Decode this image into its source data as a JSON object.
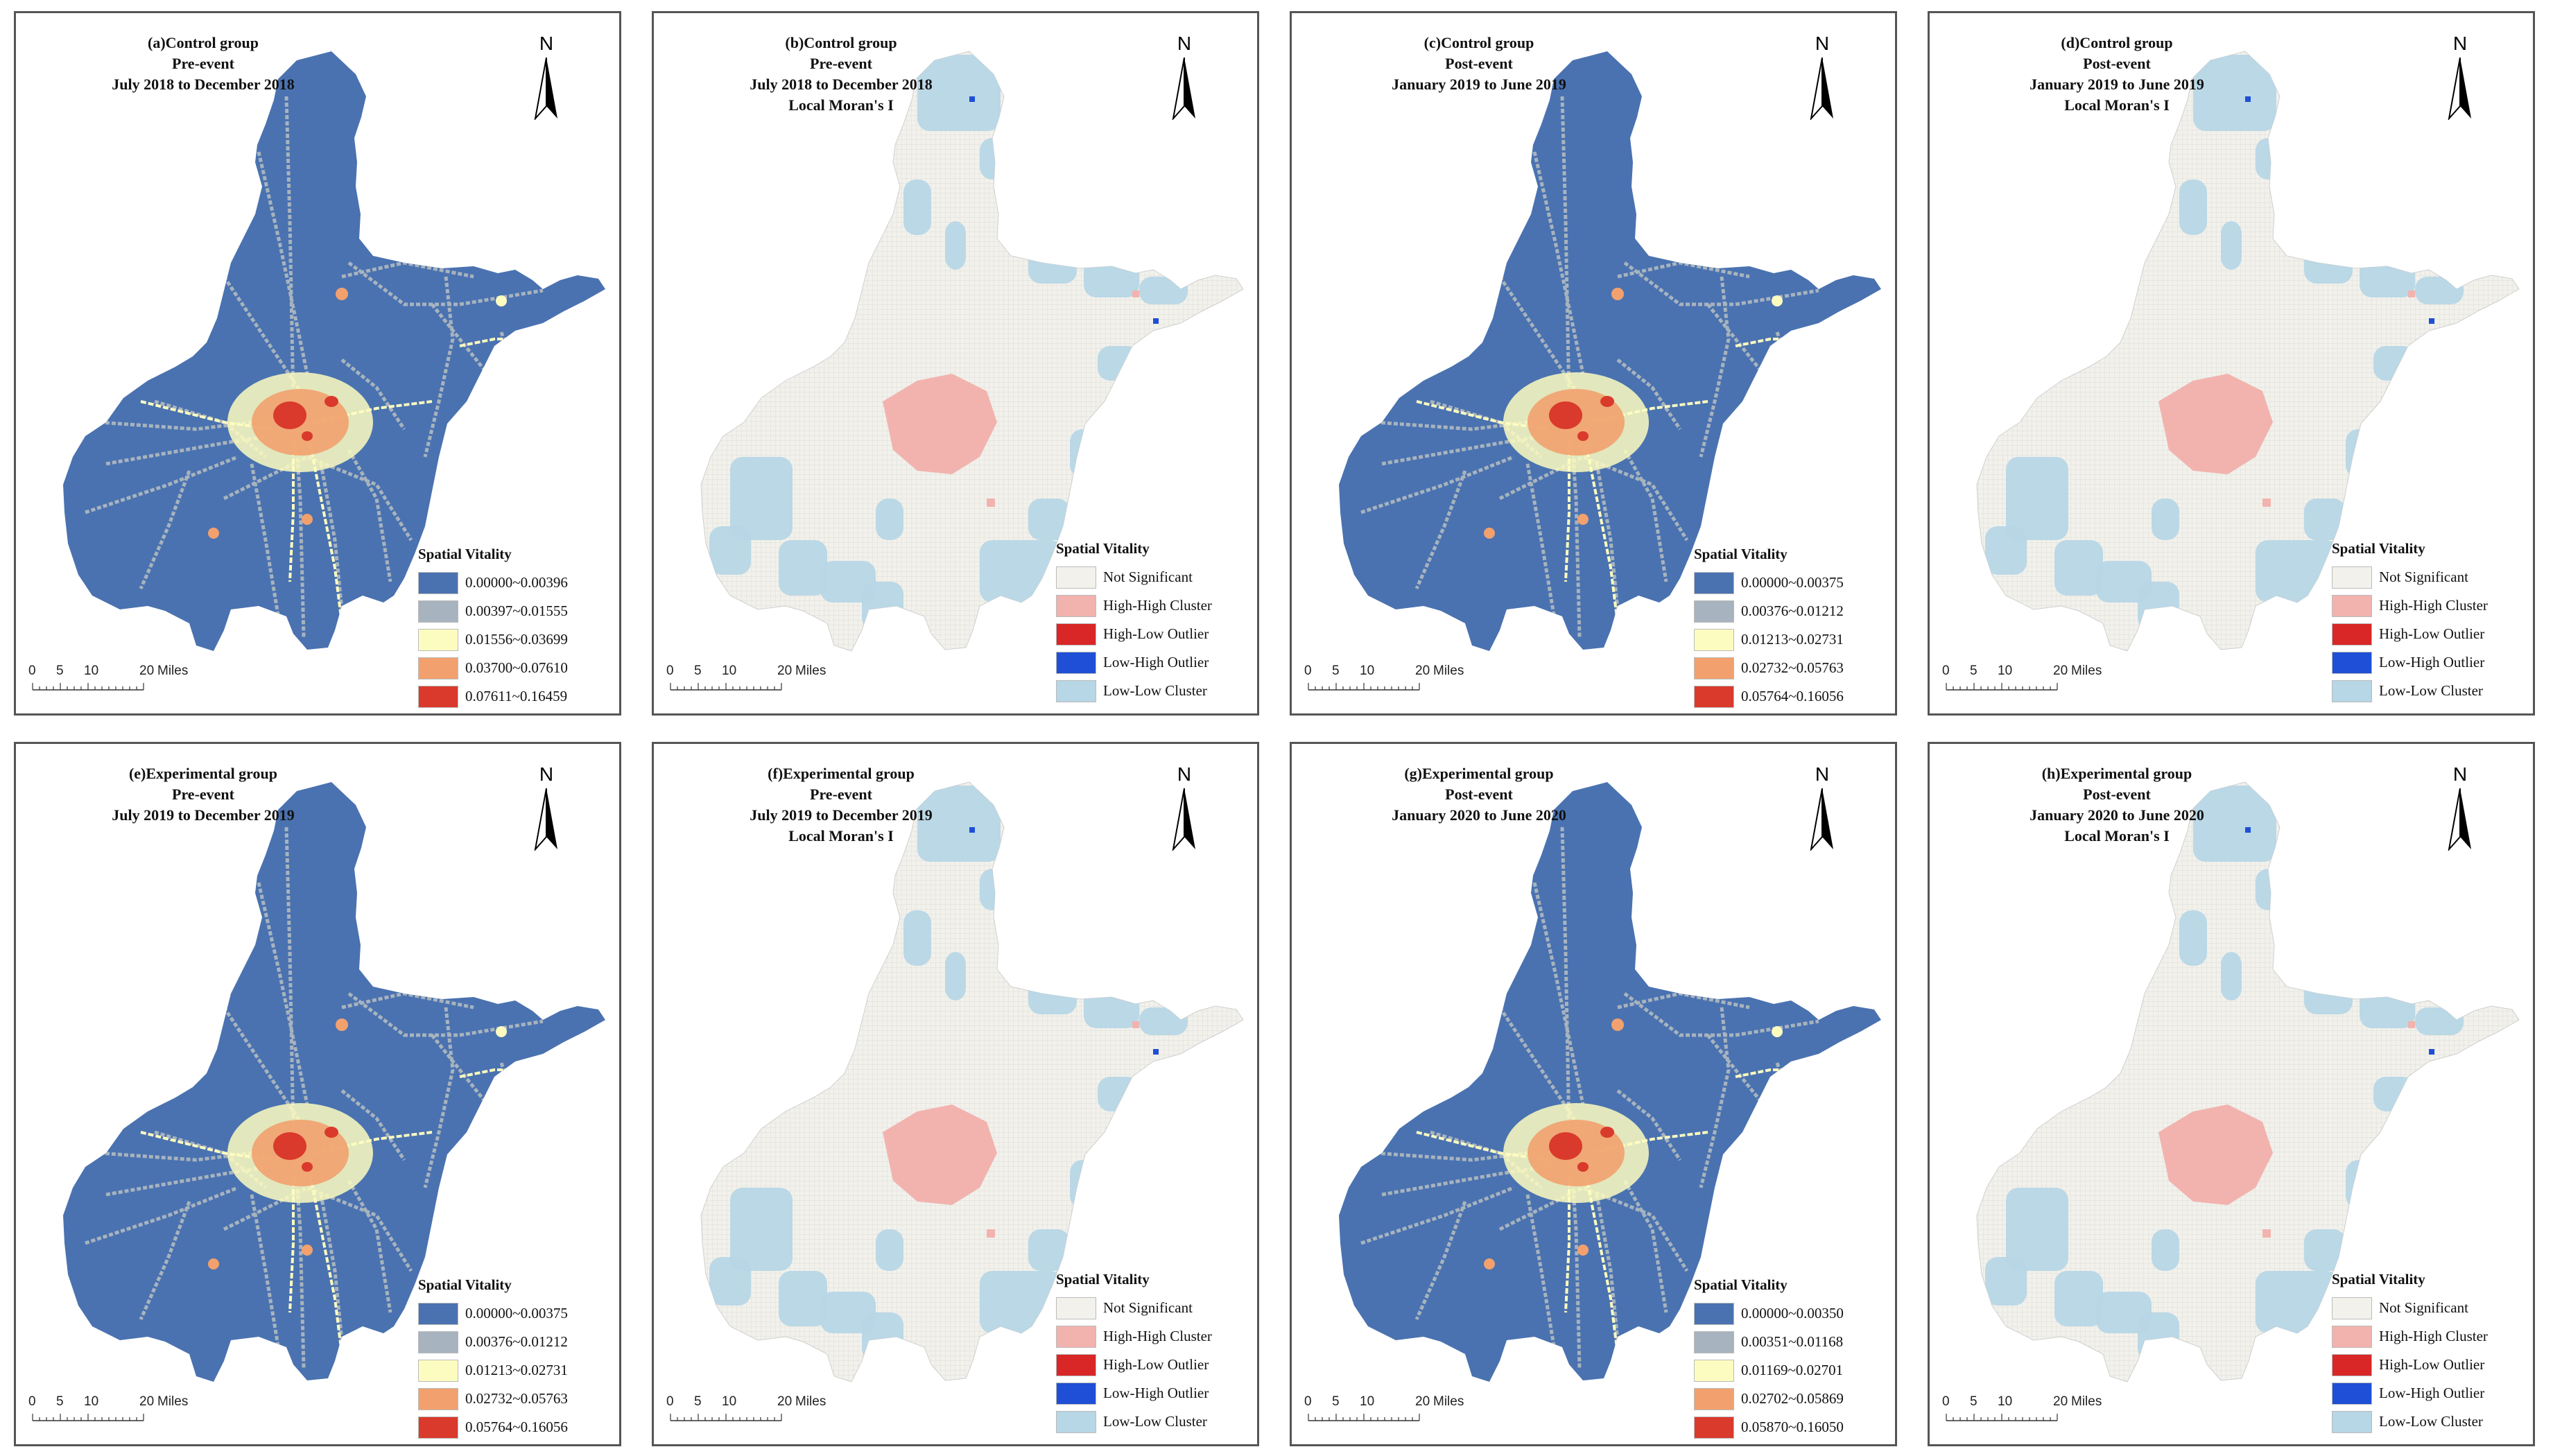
{
  "panels": [
    {
      "id": "a",
      "kind": "vitality",
      "title": [
        "(a)Control group",
        "Pre-event",
        "July 2018 to December 2018"
      ],
      "legend_title": "Spatial Vitality",
      "legend_items": [
        {
          "label": "0.00000~0.00396",
          "color": "#4a72b0"
        },
        {
          "label": "0.00397~0.01555",
          "color": "#a7b3be"
        },
        {
          "label": "0.01556~0.03699",
          "color": "#fdfcc0"
        },
        {
          "label": "0.03700~0.07610",
          "color": "#f2a16e"
        },
        {
          "label": "0.07611~0.16459",
          "color": "#d93a2c"
        }
      ],
      "north": "N",
      "scale": {
        "labels": [
          "0",
          "5",
          "10",
          "20"
        ],
        "unit": "Miles"
      }
    },
    {
      "id": "b",
      "kind": "moran",
      "title": [
        "(b)Control group",
        "Pre-event",
        "July 2018 to December 2018",
        "Local Moran's I"
      ],
      "legend_title": "Spatial Vitality",
      "legend_items": [
        {
          "label": "Not Significant",
          "color": "#f2f1ec"
        },
        {
          "label": "High-High Cluster",
          "color": "#f2b3ae"
        },
        {
          "label": "High-Low Outlier",
          "color": "#d92626"
        },
        {
          "label": "Low-High Outlier",
          "color": "#1f4fd6"
        },
        {
          "label": "Low-Low Cluster",
          "color": "#b7d6e6"
        }
      ],
      "north": "N",
      "scale": {
        "labels": [
          "0",
          "5",
          "10",
          "20"
        ],
        "unit": "Miles"
      }
    },
    {
      "id": "c",
      "kind": "vitality",
      "title": [
        "(c)Control group",
        "Post-event",
        "January 2019 to June 2019"
      ],
      "legend_title": "Spatial Vitality",
      "legend_items": [
        {
          "label": "0.00000~0.00375",
          "color": "#4a72b0"
        },
        {
          "label": "0.00376~0.01212",
          "color": "#a7b3be"
        },
        {
          "label": "0.01213~0.02731",
          "color": "#fdfcc0"
        },
        {
          "label": "0.02732~0.05763",
          "color": "#f2a16e"
        },
        {
          "label": "0.05764~0.16056",
          "color": "#d93a2c"
        }
      ],
      "north": "N",
      "scale": {
        "labels": [
          "0",
          "5",
          "10",
          "20"
        ],
        "unit": "Miles"
      }
    },
    {
      "id": "d",
      "kind": "moran",
      "title": [
        "(d)Control group",
        "Post-event",
        "January 2019 to June 2019",
        "Local Moran's I"
      ],
      "legend_title": "Spatial Vitality",
      "legend_items": [
        {
          "label": "Not Significant",
          "color": "#f2f1ec"
        },
        {
          "label": "High-High Cluster",
          "color": "#f2b3ae"
        },
        {
          "label": "High-Low Outlier",
          "color": "#d92626"
        },
        {
          "label": "Low-High Outlier",
          "color": "#1f4fd6"
        },
        {
          "label": "Low-Low Cluster",
          "color": "#b7d6e6"
        }
      ],
      "north": "N",
      "scale": {
        "labels": [
          "0",
          "5",
          "10",
          "20"
        ],
        "unit": "Miles"
      }
    },
    {
      "id": "e",
      "kind": "vitality",
      "title": [
        "(e)Experimental group",
        "Pre-event",
        "July 2019 to December 2019"
      ],
      "legend_title": "Spatial Vitality",
      "legend_items": [
        {
          "label": "0.00000~0.00375",
          "color": "#4a72b0"
        },
        {
          "label": "0.00376~0.01212",
          "color": "#a7b3be"
        },
        {
          "label": "0.01213~0.02731",
          "color": "#fdfcc0"
        },
        {
          "label": "0.02732~0.05763",
          "color": "#f2a16e"
        },
        {
          "label": "0.05764~0.16056",
          "color": "#d93a2c"
        }
      ],
      "north": "N",
      "scale": {
        "labels": [
          "0",
          "5",
          "10",
          "20"
        ],
        "unit": "Miles"
      }
    },
    {
      "id": "f",
      "kind": "moran",
      "title": [
        "(f)Experimental group",
        "Pre-event",
        "July 2019 to December 2019",
        "Local Moran's I"
      ],
      "legend_title": "Spatial Vitality",
      "legend_items": [
        {
          "label": "Not Significant",
          "color": "#f2f1ec"
        },
        {
          "label": "High-High Cluster",
          "color": "#f2b3ae"
        },
        {
          "label": "High-Low Outlier",
          "color": "#d92626"
        },
        {
          "label": "Low-High Outlier",
          "color": "#1f4fd6"
        },
        {
          "label": "Low-Low Cluster",
          "color": "#b7d6e6"
        }
      ],
      "north": "N",
      "scale": {
        "labels": [
          "0",
          "5",
          "10",
          "20"
        ],
        "unit": "Miles"
      }
    },
    {
      "id": "g",
      "kind": "vitality",
      "title": [
        "(g)Experimental group",
        "Post-event",
        "January 2020 to June 2020"
      ],
      "legend_title": "Spatial Vitality",
      "legend_items": [
        {
          "label": "0.00000~0.00350",
          "color": "#4a72b0"
        },
        {
          "label": "0.00351~0.01168",
          "color": "#a7b3be"
        },
        {
          "label": "0.01169~0.02701",
          "color": "#fdfcc0"
        },
        {
          "label": "0.02702~0.05869",
          "color": "#f2a16e"
        },
        {
          "label": "0.05870~0.16050",
          "color": "#d93a2c"
        }
      ],
      "north": "N",
      "scale": {
        "labels": [
          "0",
          "5",
          "10",
          "20"
        ],
        "unit": "Miles"
      }
    },
    {
      "id": "h",
      "kind": "moran",
      "title": [
        "(h)Experimental group",
        "Post-event",
        "January 2020 to June 2020",
        "Local Moran's I"
      ],
      "legend_title": "Spatial Vitality",
      "legend_items": [
        {
          "label": "Not Significant",
          "color": "#f2f1ec"
        },
        {
          "label": "High-High Cluster",
          "color": "#f2b3ae"
        },
        {
          "label": "High-Low Outlier",
          "color": "#d92626"
        },
        {
          "label": "Low-High Outlier",
          "color": "#1f4fd6"
        },
        {
          "label": "Low-Low Cluster",
          "color": "#b7d6e6"
        }
      ],
      "north": "N",
      "scale": {
        "labels": [
          "0",
          "5",
          "10",
          "20"
        ],
        "unit": "Miles"
      }
    }
  ]
}
